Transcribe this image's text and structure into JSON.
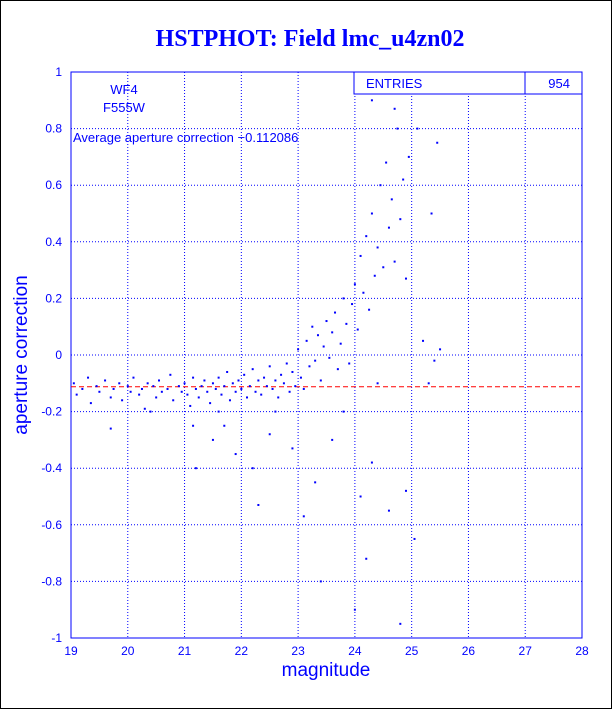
{
  "chart_data": {
    "type": "scatter",
    "title": "HSTPHOT: Field lmc_u4zn02",
    "xlabel": "magnitude",
    "ylabel": "aperture correction",
    "xlim": [
      19,
      28
    ],
    "ylim": [
      -1,
      1
    ],
    "x_ticks": [
      "19",
      "20",
      "21",
      "22",
      "23",
      "24",
      "25",
      "26",
      "27",
      "28"
    ],
    "y_ticks": [
      "-1",
      "-0.8",
      "-0.6",
      "-0.4",
      "-0.2",
      "0",
      "0.2",
      "0.4",
      "0.6",
      "0.8",
      "1"
    ],
    "grid": true,
    "annotations": {
      "chip": "WF4",
      "filter": "F555W",
      "average_text": "Average aperture correction −0.112086"
    },
    "stats": {
      "entries_label": "ENTRIES",
      "entries_value": "954"
    },
    "reference_line": {
      "y": -0.112086,
      "style": "dashed"
    },
    "series": [
      {
        "points": [
          [
            19.05,
            -0.1
          ],
          [
            19.1,
            -0.14
          ],
          [
            19.2,
            -0.12
          ],
          [
            19.3,
            -0.08
          ],
          [
            19.35,
            -0.17
          ],
          [
            19.45,
            -0.11
          ],
          [
            19.5,
            -0.13
          ],
          [
            19.6,
            -0.09
          ],
          [
            19.7,
            -0.15
          ],
          [
            19.75,
            -0.12
          ],
          [
            19.85,
            -0.1
          ],
          [
            19.9,
            -0.16
          ],
          [
            20.0,
            -0.11
          ],
          [
            20.05,
            -0.13
          ],
          [
            20.1,
            -0.08
          ],
          [
            20.2,
            -0.14
          ],
          [
            20.25,
            -0.12
          ],
          [
            20.3,
            -0.19
          ],
          [
            20.35,
            -0.1
          ],
          [
            20.45,
            -0.11
          ],
          [
            20.5,
            -0.15
          ],
          [
            20.55,
            -0.09
          ],
          [
            20.6,
            -0.13
          ],
          [
            20.7,
            -0.12
          ],
          [
            20.75,
            -0.07
          ],
          [
            20.8,
            -0.16
          ],
          [
            20.9,
            -0.11
          ],
          [
            20.95,
            -0.13
          ],
          [
            21.0,
            -0.1
          ],
          [
            21.05,
            -0.14
          ],
          [
            21.1,
            -0.18
          ],
          [
            21.15,
            -0.08
          ],
          [
            21.2,
            -0.12
          ],
          [
            21.25,
            -0.15
          ],
          [
            21.3,
            -0.11
          ],
          [
            21.35,
            -0.09
          ],
          [
            21.4,
            -0.13
          ],
          [
            21.45,
            -0.17
          ],
          [
            21.5,
            -0.1
          ],
          [
            21.55,
            -0.12
          ],
          [
            21.6,
            -0.08
          ],
          [
            21.65,
            -0.14
          ],
          [
            21.7,
            -0.11
          ],
          [
            21.75,
            -0.06
          ],
          [
            21.8,
            -0.16
          ],
          [
            21.85,
            -0.1
          ],
          [
            21.9,
            -0.13
          ],
          [
            21.95,
            -0.09
          ],
          [
            22.0,
            -0.12
          ],
          [
            22.05,
            -0.07
          ],
          [
            22.1,
            -0.15
          ],
          [
            22.15,
            -0.11
          ],
          [
            22.2,
            -0.05
          ],
          [
            22.25,
            -0.13
          ],
          [
            22.3,
            -0.09
          ],
          [
            22.35,
            -0.14
          ],
          [
            22.4,
            -0.08
          ],
          [
            22.45,
            -0.11
          ],
          [
            22.5,
            -0.04
          ],
          [
            22.55,
            -0.12
          ],
          [
            22.6,
            -0.09
          ],
          [
            22.65,
            -0.15
          ],
          [
            22.7,
            -0.07
          ],
          [
            22.75,
            -0.1
          ],
          [
            22.8,
            -0.03
          ],
          [
            22.85,
            -0.13
          ],
          [
            22.9,
            -0.06
          ],
          [
            22.95,
            -0.11
          ],
          [
            23.0,
            0.02
          ],
          [
            23.05,
            -0.08
          ],
          [
            23.1,
            -0.12
          ],
          [
            23.15,
            0.05
          ],
          [
            23.2,
            -0.04
          ],
          [
            23.25,
            0.1
          ],
          [
            23.3,
            -0.02
          ],
          [
            23.35,
            0.07
          ],
          [
            23.4,
            -0.09
          ],
          [
            23.45,
            0.03
          ],
          [
            23.5,
            0.12
          ],
          [
            23.55,
            -0.01
          ],
          [
            23.6,
            0.08
          ],
          [
            23.65,
            0.15
          ],
          [
            23.7,
            -0.05
          ],
          [
            23.75,
            0.04
          ],
          [
            23.8,
            0.2
          ],
          [
            23.85,
            0.11
          ],
          [
            23.9,
            -0.03
          ],
          [
            23.95,
            0.18
          ],
          [
            24.0,
            0.25
          ],
          [
            24.05,
            0.09
          ],
          [
            24.1,
            0.35
          ],
          [
            24.15,
            0.22
          ],
          [
            24.2,
            0.42
          ],
          [
            24.25,
            0.16
          ],
          [
            24.3,
            0.5
          ],
          [
            24.35,
            0.28
          ],
          [
            24.4,
            0.38
          ],
          [
            24.45,
            0.6
          ],
          [
            24.5,
            0.31
          ],
          [
            24.55,
            0.68
          ],
          [
            24.6,
            0.45
          ],
          [
            24.65,
            0.55
          ],
          [
            24.7,
            0.33
          ],
          [
            24.75,
            0.8
          ],
          [
            24.8,
            0.48
          ],
          [
            24.85,
            0.62
          ],
          [
            24.9,
            0.27
          ],
          [
            24.95,
            0.7
          ],
          [
            21.5,
            -0.3
          ],
          [
            21.7,
            -0.25
          ],
          [
            21.9,
            -0.35
          ],
          [
            22.2,
            -0.4
          ],
          [
            22.5,
            -0.28
          ],
          [
            22.9,
            -0.33
          ],
          [
            23.3,
            -0.45
          ],
          [
            23.6,
            -0.3
          ],
          [
            24.1,
            -0.5
          ],
          [
            24.3,
            -0.38
          ],
          [
            24.6,
            -0.55
          ],
          [
            24.9,
            -0.48
          ],
          [
            22.3,
            -0.53
          ],
          [
            23.1,
            -0.57
          ],
          [
            23.4,
            -0.8
          ],
          [
            24.2,
            -0.72
          ],
          [
            24.0,
            -0.9
          ],
          [
            24.8,
            -0.95
          ],
          [
            25.05,
            -0.65
          ],
          [
            25.1,
            0.8
          ],
          [
            25.2,
            0.05
          ],
          [
            25.3,
            -0.1
          ],
          [
            25.35,
            0.5
          ],
          [
            25.45,
            0.75
          ],
          [
            25.5,
            0.02
          ],
          [
            21.2,
            -0.4
          ],
          [
            21.6,
            -0.2
          ],
          [
            20.4,
            -0.2
          ],
          [
            19.7,
            -0.26
          ],
          [
            21.15,
            -0.25
          ],
          [
            22.6,
            -0.2
          ],
          [
            23.8,
            -0.2
          ],
          [
            24.4,
            -0.1
          ],
          [
            25.4,
            -0.02
          ],
          [
            24.3,
            0.9
          ],
          [
            24.7,
            0.87
          ]
        ]
      }
    ]
  }
}
